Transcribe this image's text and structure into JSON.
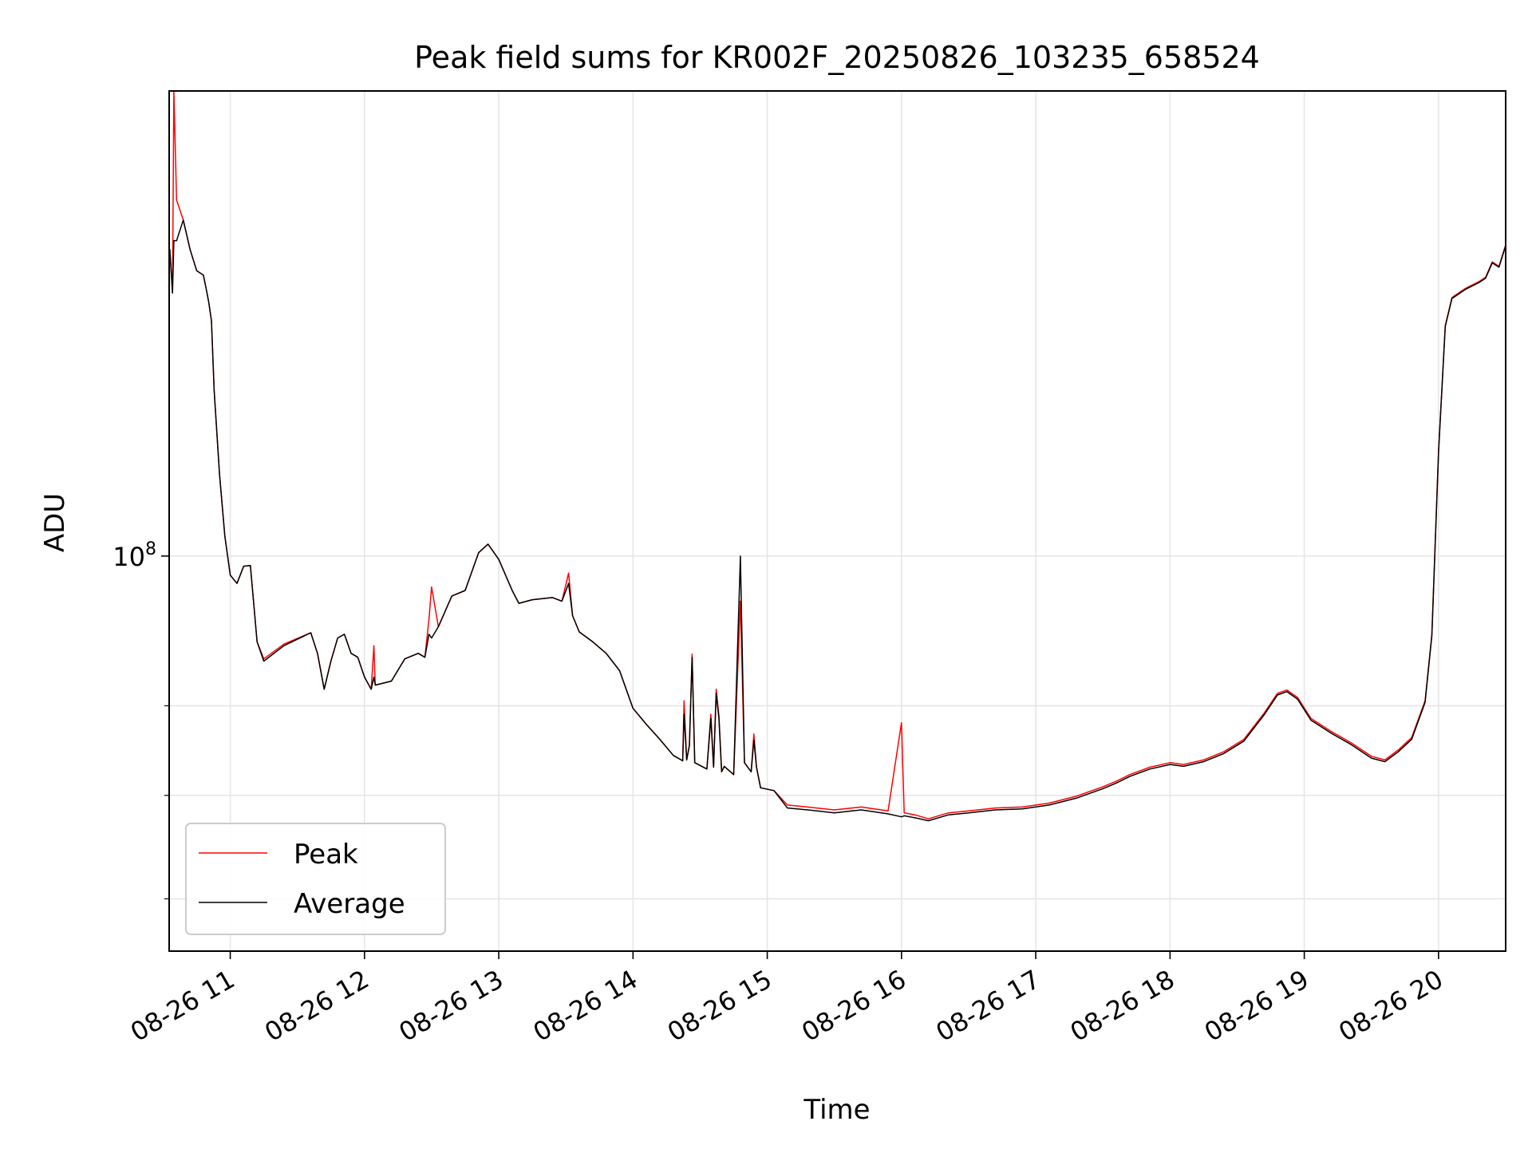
{
  "chart_data": {
    "type": "line",
    "title": "Peak field sums for KR002F_20250826_103235_658524",
    "xlabel": "Time",
    "ylabel": "ADU",
    "y_scale": "log",
    "grid": true,
    "legend_position": "lower-left",
    "x_ticks": [
      "08-26 11",
      "08-26 12",
      "08-26 13",
      "08-26 14",
      "08-26 15",
      "08-26 16",
      "08-26 17",
      "08-26 18",
      "08-26 19",
      "08-26 20"
    ],
    "x_tick_hours": [
      11,
      12,
      13,
      14,
      15,
      16,
      17,
      18,
      19,
      20
    ],
    "x_range_hours": [
      10.545,
      20.5
    ],
    "y_major_tick": {
      "value": 100000000,
      "base": "10",
      "exponent": "8"
    },
    "y_minor_ticks": [
      60000000,
      70000000,
      80000000
    ],
    "ylim": [
      55500000,
      200000000
    ],
    "series": [
      {
        "name": "Peak",
        "color": "#ff0000",
        "points": [
          [
            10.55,
            158000000
          ],
          [
            10.57,
            148000000
          ],
          [
            10.58,
            200000000
          ],
          [
            10.6,
            170000000
          ],
          [
            10.65,
            165000000
          ],
          [
            10.7,
            158000000
          ],
          [
            10.75,
            153000000
          ],
          [
            10.8,
            152000000
          ],
          [
            10.82,
            149000000
          ],
          [
            10.84,
            146000000
          ],
          [
            10.86,
            142000000
          ],
          [
            10.88,
            128000000
          ],
          [
            10.92,
            113000000
          ],
          [
            10.96,
            103000000
          ],
          [
            11.0,
            97200000
          ],
          [
            11.05,
            96000000
          ],
          [
            11.1,
            98500000
          ],
          [
            11.15,
            98600000
          ],
          [
            11.2,
            88000000
          ],
          [
            11.25,
            85800000
          ],
          [
            11.4,
            87700000
          ],
          [
            11.6,
            89200000
          ],
          [
            11.65,
            86500000
          ],
          [
            11.7,
            82000000
          ],
          [
            11.75,
            85500000
          ],
          [
            11.8,
            88500000
          ],
          [
            11.85,
            89000000
          ],
          [
            11.9,
            86500000
          ],
          [
            11.95,
            86000000
          ],
          [
            12.0,
            83500000
          ],
          [
            12.05,
            82000000
          ],
          [
            12.07,
            87500000
          ],
          [
            12.08,
            82500000
          ],
          [
            12.2,
            83000000
          ],
          [
            12.3,
            85800000
          ],
          [
            12.4,
            86500000
          ],
          [
            12.45,
            86000000
          ],
          [
            12.48,
            91000000
          ],
          [
            12.5,
            95500000
          ],
          [
            12.55,
            90000000
          ],
          [
            12.65,
            94200000
          ],
          [
            12.75,
            95000000
          ],
          [
            12.85,
            100500000
          ],
          [
            12.92,
            101800000
          ],
          [
            13.0,
            99500000
          ],
          [
            13.1,
            95000000
          ],
          [
            13.15,
            93200000
          ],
          [
            13.25,
            93700000
          ],
          [
            13.4,
            94000000
          ],
          [
            13.47,
            93500000
          ],
          [
            13.52,
            97500000
          ],
          [
            13.55,
            91500000
          ],
          [
            13.6,
            89300000
          ],
          [
            13.7,
            88000000
          ],
          [
            13.8,
            86500000
          ],
          [
            13.9,
            84300000
          ],
          [
            14.0,
            79700000
          ],
          [
            14.1,
            77800000
          ],
          [
            14.2,
            76100000
          ],
          [
            14.3,
            74300000
          ],
          [
            14.37,
            73700000
          ],
          [
            14.38,
            80600000
          ],
          [
            14.4,
            73800000
          ],
          [
            14.42,
            75400000
          ],
          [
            14.44,
            86400000
          ],
          [
            14.46,
            73500000
          ],
          [
            14.55,
            72800000
          ],
          [
            14.58,
            79000000
          ],
          [
            14.6,
            73000000
          ],
          [
            14.62,
            82000000
          ],
          [
            14.64,
            78800000
          ],
          [
            14.66,
            72500000
          ],
          [
            14.68,
            73100000
          ],
          [
            14.75,
            72200000
          ],
          [
            14.8,
            93500000
          ],
          [
            14.83,
            73500000
          ],
          [
            14.88,
            72500000
          ],
          [
            14.9,
            76700000
          ],
          [
            14.92,
            73000000
          ],
          [
            14.95,
            70800000
          ],
          [
            15.05,
            70500000
          ],
          [
            15.15,
            69000000
          ],
          [
            15.3,
            68800000
          ],
          [
            15.5,
            68500000
          ],
          [
            15.7,
            68800000
          ],
          [
            15.9,
            68400000
          ],
          [
            16.0,
            78000000
          ],
          [
            16.02,
            68200000
          ],
          [
            16.1,
            68000000
          ],
          [
            16.2,
            67600000
          ],
          [
            16.35,
            68200000
          ],
          [
            16.5,
            68400000
          ],
          [
            16.7,
            68700000
          ],
          [
            16.9,
            68800000
          ],
          [
            17.1,
            69200000
          ],
          [
            17.3,
            69900000
          ],
          [
            17.5,
            70900000
          ],
          [
            17.6,
            71500000
          ],
          [
            17.7,
            72200000
          ],
          [
            17.85,
            73000000
          ],
          [
            18.0,
            73500000
          ],
          [
            18.1,
            73300000
          ],
          [
            18.25,
            73800000
          ],
          [
            18.4,
            74700000
          ],
          [
            18.55,
            76100000
          ],
          [
            18.7,
            79100000
          ],
          [
            18.8,
            81500000
          ],
          [
            18.87,
            81900000
          ],
          [
            18.95,
            81000000
          ],
          [
            19.05,
            78500000
          ],
          [
            19.2,
            77000000
          ],
          [
            19.35,
            75700000
          ],
          [
            19.5,
            74200000
          ],
          [
            19.6,
            73800000
          ],
          [
            19.7,
            74900000
          ],
          [
            19.8,
            76300000
          ],
          [
            19.9,
            80600000
          ],
          [
            19.95,
            89000000
          ],
          [
            20.0,
            117000000
          ],
          [
            20.05,
            141000000
          ],
          [
            20.1,
            147000000
          ],
          [
            20.2,
            149000000
          ],
          [
            20.3,
            150500000
          ],
          [
            20.35,
            151500000
          ],
          [
            20.4,
            155000000
          ],
          [
            20.45,
            154000000
          ],
          [
            20.5,
            159000000
          ]
        ]
      },
      {
        "name": "Average",
        "color": "#000000",
        "points": [
          [
            10.55,
            158000000
          ],
          [
            10.57,
            148000000
          ],
          [
            10.58,
            160000000
          ],
          [
            10.6,
            160000000
          ],
          [
            10.65,
            165000000
          ],
          [
            10.7,
            158000000
          ],
          [
            10.75,
            153000000
          ],
          [
            10.8,
            152000000
          ],
          [
            10.82,
            149000000
          ],
          [
            10.84,
            146000000
          ],
          [
            10.86,
            142000000
          ],
          [
            10.88,
            128000000
          ],
          [
            10.92,
            113000000
          ],
          [
            10.96,
            103000000
          ],
          [
            11.0,
            97200000
          ],
          [
            11.05,
            96000000
          ],
          [
            11.1,
            98500000
          ],
          [
            11.15,
            98600000
          ],
          [
            11.2,
            88000000
          ],
          [
            11.25,
            85500000
          ],
          [
            11.4,
            87500000
          ],
          [
            11.6,
            89200000
          ],
          [
            11.65,
            86500000
          ],
          [
            11.7,
            82000000
          ],
          [
            11.75,
            85500000
          ],
          [
            11.8,
            88500000
          ],
          [
            11.85,
            89000000
          ],
          [
            11.9,
            86500000
          ],
          [
            11.95,
            86000000
          ],
          [
            12.0,
            83500000
          ],
          [
            12.05,
            82000000
          ],
          [
            12.07,
            83500000
          ],
          [
            12.08,
            82500000
          ],
          [
            12.2,
            83000000
          ],
          [
            12.3,
            85800000
          ],
          [
            12.4,
            86500000
          ],
          [
            12.45,
            86000000
          ],
          [
            12.48,
            89000000
          ],
          [
            12.5,
            88500000
          ],
          [
            12.55,
            90000000
          ],
          [
            12.65,
            94200000
          ],
          [
            12.75,
            95000000
          ],
          [
            12.85,
            100500000
          ],
          [
            12.92,
            101800000
          ],
          [
            13.0,
            99500000
          ],
          [
            13.1,
            95000000
          ],
          [
            13.15,
            93200000
          ],
          [
            13.25,
            93700000
          ],
          [
            13.4,
            94000000
          ],
          [
            13.47,
            93500000
          ],
          [
            13.52,
            96000000
          ],
          [
            13.55,
            91500000
          ],
          [
            13.6,
            89300000
          ],
          [
            13.7,
            88000000
          ],
          [
            13.8,
            86500000
          ],
          [
            13.9,
            84300000
          ],
          [
            14.0,
            79700000
          ],
          [
            14.1,
            77800000
          ],
          [
            14.2,
            76100000
          ],
          [
            14.3,
            74300000
          ],
          [
            14.37,
            73700000
          ],
          [
            14.38,
            79000000
          ],
          [
            14.4,
            73800000
          ],
          [
            14.42,
            75400000
          ],
          [
            14.44,
            86000000
          ],
          [
            14.46,
            73500000
          ],
          [
            14.55,
            72800000
          ],
          [
            14.58,
            78500000
          ],
          [
            14.6,
            73000000
          ],
          [
            14.62,
            81500000
          ],
          [
            14.64,
            78500000
          ],
          [
            14.66,
            72500000
          ],
          [
            14.68,
            73100000
          ],
          [
            14.75,
            72200000
          ],
          [
            14.8,
            100000000
          ],
          [
            14.83,
            73500000
          ],
          [
            14.88,
            72500000
          ],
          [
            14.9,
            76000000
          ],
          [
            14.92,
            73000000
          ],
          [
            14.95,
            70800000
          ],
          [
            15.05,
            70500000
          ],
          [
            15.15,
            68700000
          ],
          [
            15.3,
            68500000
          ],
          [
            15.5,
            68200000
          ],
          [
            15.7,
            68500000
          ],
          [
            15.9,
            68100000
          ],
          [
            16.0,
            67800000
          ],
          [
            16.02,
            67900000
          ],
          [
            16.1,
            67700000
          ],
          [
            16.2,
            67400000
          ],
          [
            16.35,
            68000000
          ],
          [
            16.5,
            68200000
          ],
          [
            16.7,
            68500000
          ],
          [
            16.9,
            68600000
          ],
          [
            17.1,
            69000000
          ],
          [
            17.3,
            69700000
          ],
          [
            17.5,
            70700000
          ],
          [
            17.6,
            71300000
          ],
          [
            17.7,
            72000000
          ],
          [
            17.85,
            72800000
          ],
          [
            18.0,
            73300000
          ],
          [
            18.1,
            73100000
          ],
          [
            18.25,
            73600000
          ],
          [
            18.4,
            74500000
          ],
          [
            18.55,
            75900000
          ],
          [
            18.7,
            78900000
          ],
          [
            18.8,
            81300000
          ],
          [
            18.87,
            81700000
          ],
          [
            18.95,
            80800000
          ],
          [
            19.05,
            78300000
          ],
          [
            19.2,
            76800000
          ],
          [
            19.35,
            75500000
          ],
          [
            19.5,
            74000000
          ],
          [
            19.6,
            73600000
          ],
          [
            19.7,
            74700000
          ],
          [
            19.8,
            76100000
          ],
          [
            19.9,
            80400000
          ],
          [
            19.95,
            88800000
          ],
          [
            20.0,
            116800000
          ],
          [
            20.05,
            140800000
          ],
          [
            20.1,
            146800000
          ],
          [
            20.2,
            148800000
          ],
          [
            20.3,
            150300000
          ],
          [
            20.35,
            151300000
          ],
          [
            20.4,
            154800000
          ],
          [
            20.45,
            153800000
          ],
          [
            20.5,
            158800000
          ]
        ]
      }
    ]
  }
}
